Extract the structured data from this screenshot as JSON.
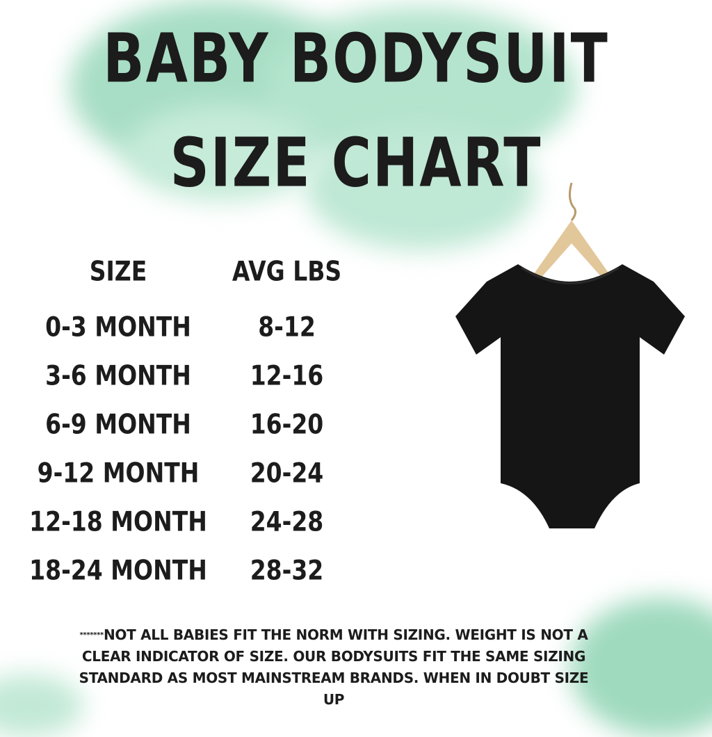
{
  "title": {
    "line1": "BABY BODYSUIT",
    "line2": "SIZE CHART"
  },
  "table": {
    "headers": [
      "SIZE",
      "AVG LBS"
    ],
    "rows": [
      {
        "size": "0-3 MONTH",
        "lbs": "8-12"
      },
      {
        "size": "3-6 MONTH",
        "lbs": "12-16"
      },
      {
        "size": "6-9 MONTH",
        "lbs": "16-20"
      },
      {
        "size": "9-12 MONTH",
        "lbs": "20-24"
      },
      {
        "size": "12-18 MONTH",
        "lbs": "24-28"
      },
      {
        "size": "18-24 MONTH",
        "lbs": "28-32"
      }
    ]
  },
  "note": {
    "prefix": "*******",
    "text": "NOT ALL BABIES FIT THE NORM WITH SIZING. WEIGHT IS NOT A CLEAR INDICATOR OF SIZE. OUR BODYSUITS FIT THE SAME SIZING STANDARD AS MOST MAINSTREAM BRANDS. WHEN IN DOUBT SIZE UP"
  },
  "colors": {
    "watercolor": "#8fd4b4",
    "bodysuit": "#151515",
    "hanger": "#e2c79a"
  },
  "image": {
    "product": "black short-sleeve baby bodysuit on wooden hanger"
  }
}
